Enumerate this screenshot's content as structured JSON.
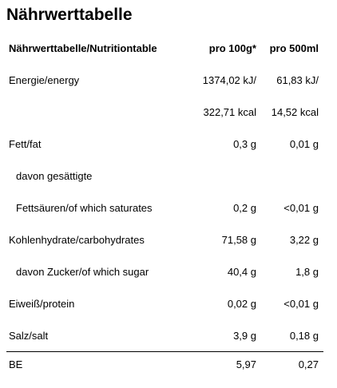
{
  "title": "Nährwerttabelle",
  "table": {
    "headers": {
      "label": "Nährwerttabelle/Nutritiontable",
      "per100": "pro 100g*",
      "per500": "pro 500ml"
    },
    "rows": [
      {
        "label": "Energie/energy",
        "per100": "1374,02 kJ/",
        "per500": "61,83 kJ/",
        "indent": false
      },
      {
        "label": "",
        "per100": "322,71 kcal",
        "per500": "14,52 kcal",
        "indent": false
      },
      {
        "label": "Fett/fat",
        "per100": "0,3 g",
        "per500": "0,01 g",
        "indent": false
      },
      {
        "label": "davon gesättigte",
        "per100": "",
        "per500": "",
        "indent": true
      },
      {
        "label": "Fettsäuren/of which saturates",
        "per100": "0,2 g",
        "per500": "<0,01 g",
        "indent": true
      },
      {
        "label": "Kohlenhydrate/carbohydrates",
        "per100": "71,58 g",
        "per500": "3,22 g",
        "indent": false
      },
      {
        "label": "davon Zucker/of which sugar",
        "per100": "40,4 g",
        "per500": "1,8 g",
        "indent": true
      },
      {
        "label": "Eiweiß/protein",
        "per100": "0,02 g",
        "per500": "<0,01 g",
        "indent": false
      },
      {
        "label": "Salz/salt",
        "per100": "3,9 g",
        "per500": "0,18 g",
        "indent": false
      }
    ],
    "footer": {
      "label": "BE",
      "per100": "5,97",
      "per500": "0,27"
    }
  }
}
